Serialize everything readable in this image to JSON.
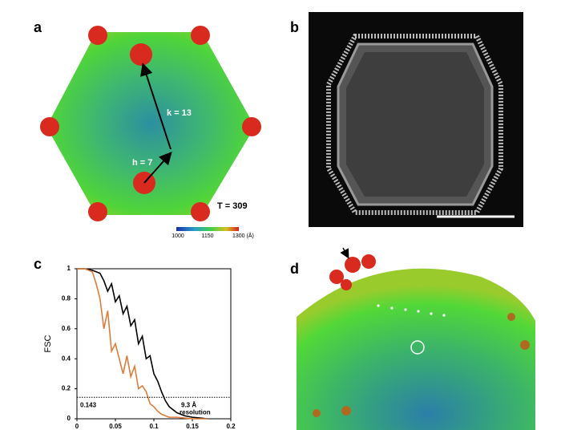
{
  "panels": {
    "a": {
      "label": "a",
      "k": "k = 13",
      "h": "h = 7",
      "T": "T = 309",
      "colorbar": [
        "1000",
        "1150",
        "1300 (Å)"
      ]
    },
    "b": {
      "label": "b"
    },
    "c": {
      "label": "c"
    },
    "d": {
      "label": "d"
    }
  },
  "chart_data": {
    "type": "line",
    "ylabel": "FSC",
    "x": [
      0,
      0.01,
      0.02,
      0.025,
      0.03,
      0.035,
      0.04,
      0.045,
      0.05,
      0.055,
      0.06,
      0.065,
      0.07,
      0.075,
      0.08,
      0.085,
      0.09,
      0.095,
      0.1,
      0.105,
      0.11,
      0.115,
      0.12,
      0.13,
      0.14,
      0.15,
      0.16,
      0.17
    ],
    "series": [
      {
        "color": "#000000",
        "values": [
          1,
          1,
          0.99,
          0.98,
          0.97,
          0.92,
          0.85,
          0.9,
          0.78,
          0.82,
          0.7,
          0.75,
          0.62,
          0.66,
          0.5,
          0.55,
          0.4,
          0.42,
          0.3,
          0.25,
          0.18,
          0.12,
          0.08,
          0.04,
          0.02,
          0.01,
          0.005,
          0
        ]
      },
      {
        "color": "#e07b39",
        "values": [
          1,
          1,
          0.98,
          0.9,
          0.8,
          0.6,
          0.72,
          0.45,
          0.5,
          0.4,
          0.3,
          0.42,
          0.28,
          0.35,
          0.2,
          0.22,
          0.18,
          0.1,
          0.08,
          0.05,
          0.03,
          0.02,
          0.01,
          0.01,
          0.005,
          0,
          0,
          0
        ]
      }
    ],
    "xlim": [
      0,
      0.2
    ],
    "ylim": [
      0,
      1
    ],
    "xticks": [
      0,
      0.05,
      0.1,
      0.15,
      0.2
    ],
    "yticks": [
      0,
      0.2,
      0.4,
      0.6,
      0.8,
      1
    ],
    "threshold": 0.143,
    "annotation": [
      "9.3 Å",
      "resolution"
    ]
  }
}
